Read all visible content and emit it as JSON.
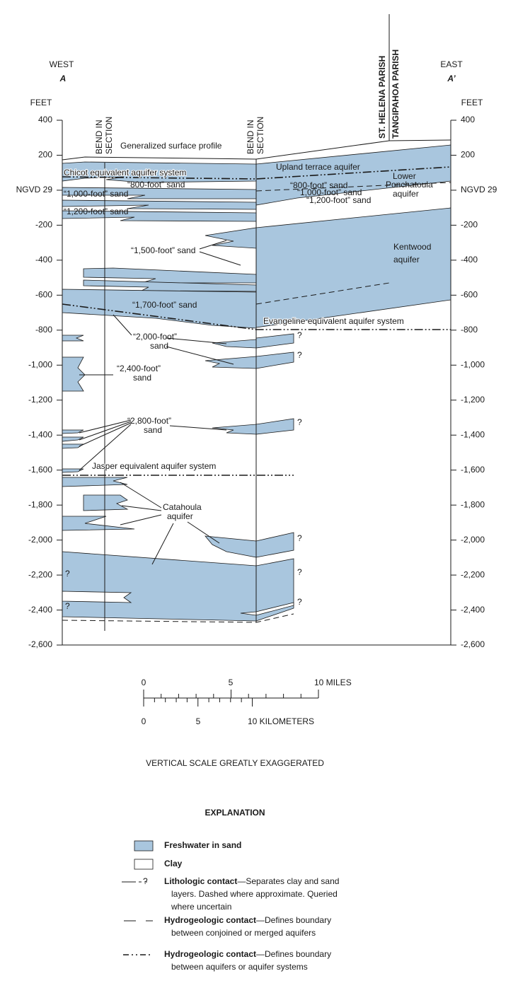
{
  "header": {
    "west": "WEST",
    "west_section": "A",
    "east": "EAST",
    "east_section": "A’",
    "parishes": [
      "ST. HELENA PARISH",
      "TANGIPAHOA PARISH"
    ]
  },
  "axes": {
    "unit_left": "FEET",
    "unit_right": "FEET",
    "ticks": [
      "400",
      "200",
      "NGVD 29",
      "-200",
      "-400",
      "-600",
      "-800",
      "-1,000",
      "-1,200",
      "-1,400",
      "-1,600",
      "-1,800",
      "-2,000",
      "-2,200",
      "-2,400",
      "-2,600"
    ]
  },
  "bends": [
    {
      "line1": "BEND IN",
      "line2": "SECTION"
    },
    {
      "line1": "BEND IN",
      "line2": "SECTION"
    }
  ],
  "annotations": [
    "Generalized surface profile",
    "Chicot equivalent aquifer system",
    "“800-foot” sand",
    "“1,000-foot” sand",
    "“1,200-foot” sand",
    "Upland terrace aquifer",
    "Lower",
    "Ponchatoula",
    "aquifer",
    "“800-foot” sand",
    "“1,000-foot” sand",
    "“1,200-foot” sand",
    "“1,500-foot” sand",
    "Kentwood",
    "aquifer",
    "“1,700-foot” sand",
    "Evangeline equivalent aquifer system",
    "“2,000-foot”",
    "sand",
    "“2,400-foot”",
    "sand",
    "“2,800-foot”",
    "sand",
    "Jasper equivalent aquifer system",
    "Catahoula",
    "aquifer"
  ],
  "query_marks": [
    "?",
    "?",
    "?",
    "?",
    "?",
    "?",
    "?",
    "?"
  ],
  "scale": {
    "miles": [
      "0",
      "5",
      "10 MILES"
    ],
    "kilometers": [
      "0",
      "5",
      "10 KILOMETERS"
    ],
    "note": "VERTICAL SCALE GREATLY EXAGGERATED"
  },
  "explanation": {
    "title": "EXPLANATION",
    "items": [
      {
        "term": "Freshwater in sand"
      },
      {
        "term": "Clay"
      },
      {
        "symbol": "?",
        "term": "Lithologic contact",
        "description": [
          "—Separates clay and sand",
          "layers. Dashed where approximate. Queried",
          "where uncertain"
        ]
      },
      {
        "term": "Hydrogeologic contact",
        "description": [
          "—Defines boundary",
          "between conjoined or merged aquifers"
        ]
      },
      {
        "term": "Hydrogeologic contact",
        "description": [
          "—Defines boundary",
          "between aquifers or aquifer systems"
        ]
      }
    ]
  }
}
